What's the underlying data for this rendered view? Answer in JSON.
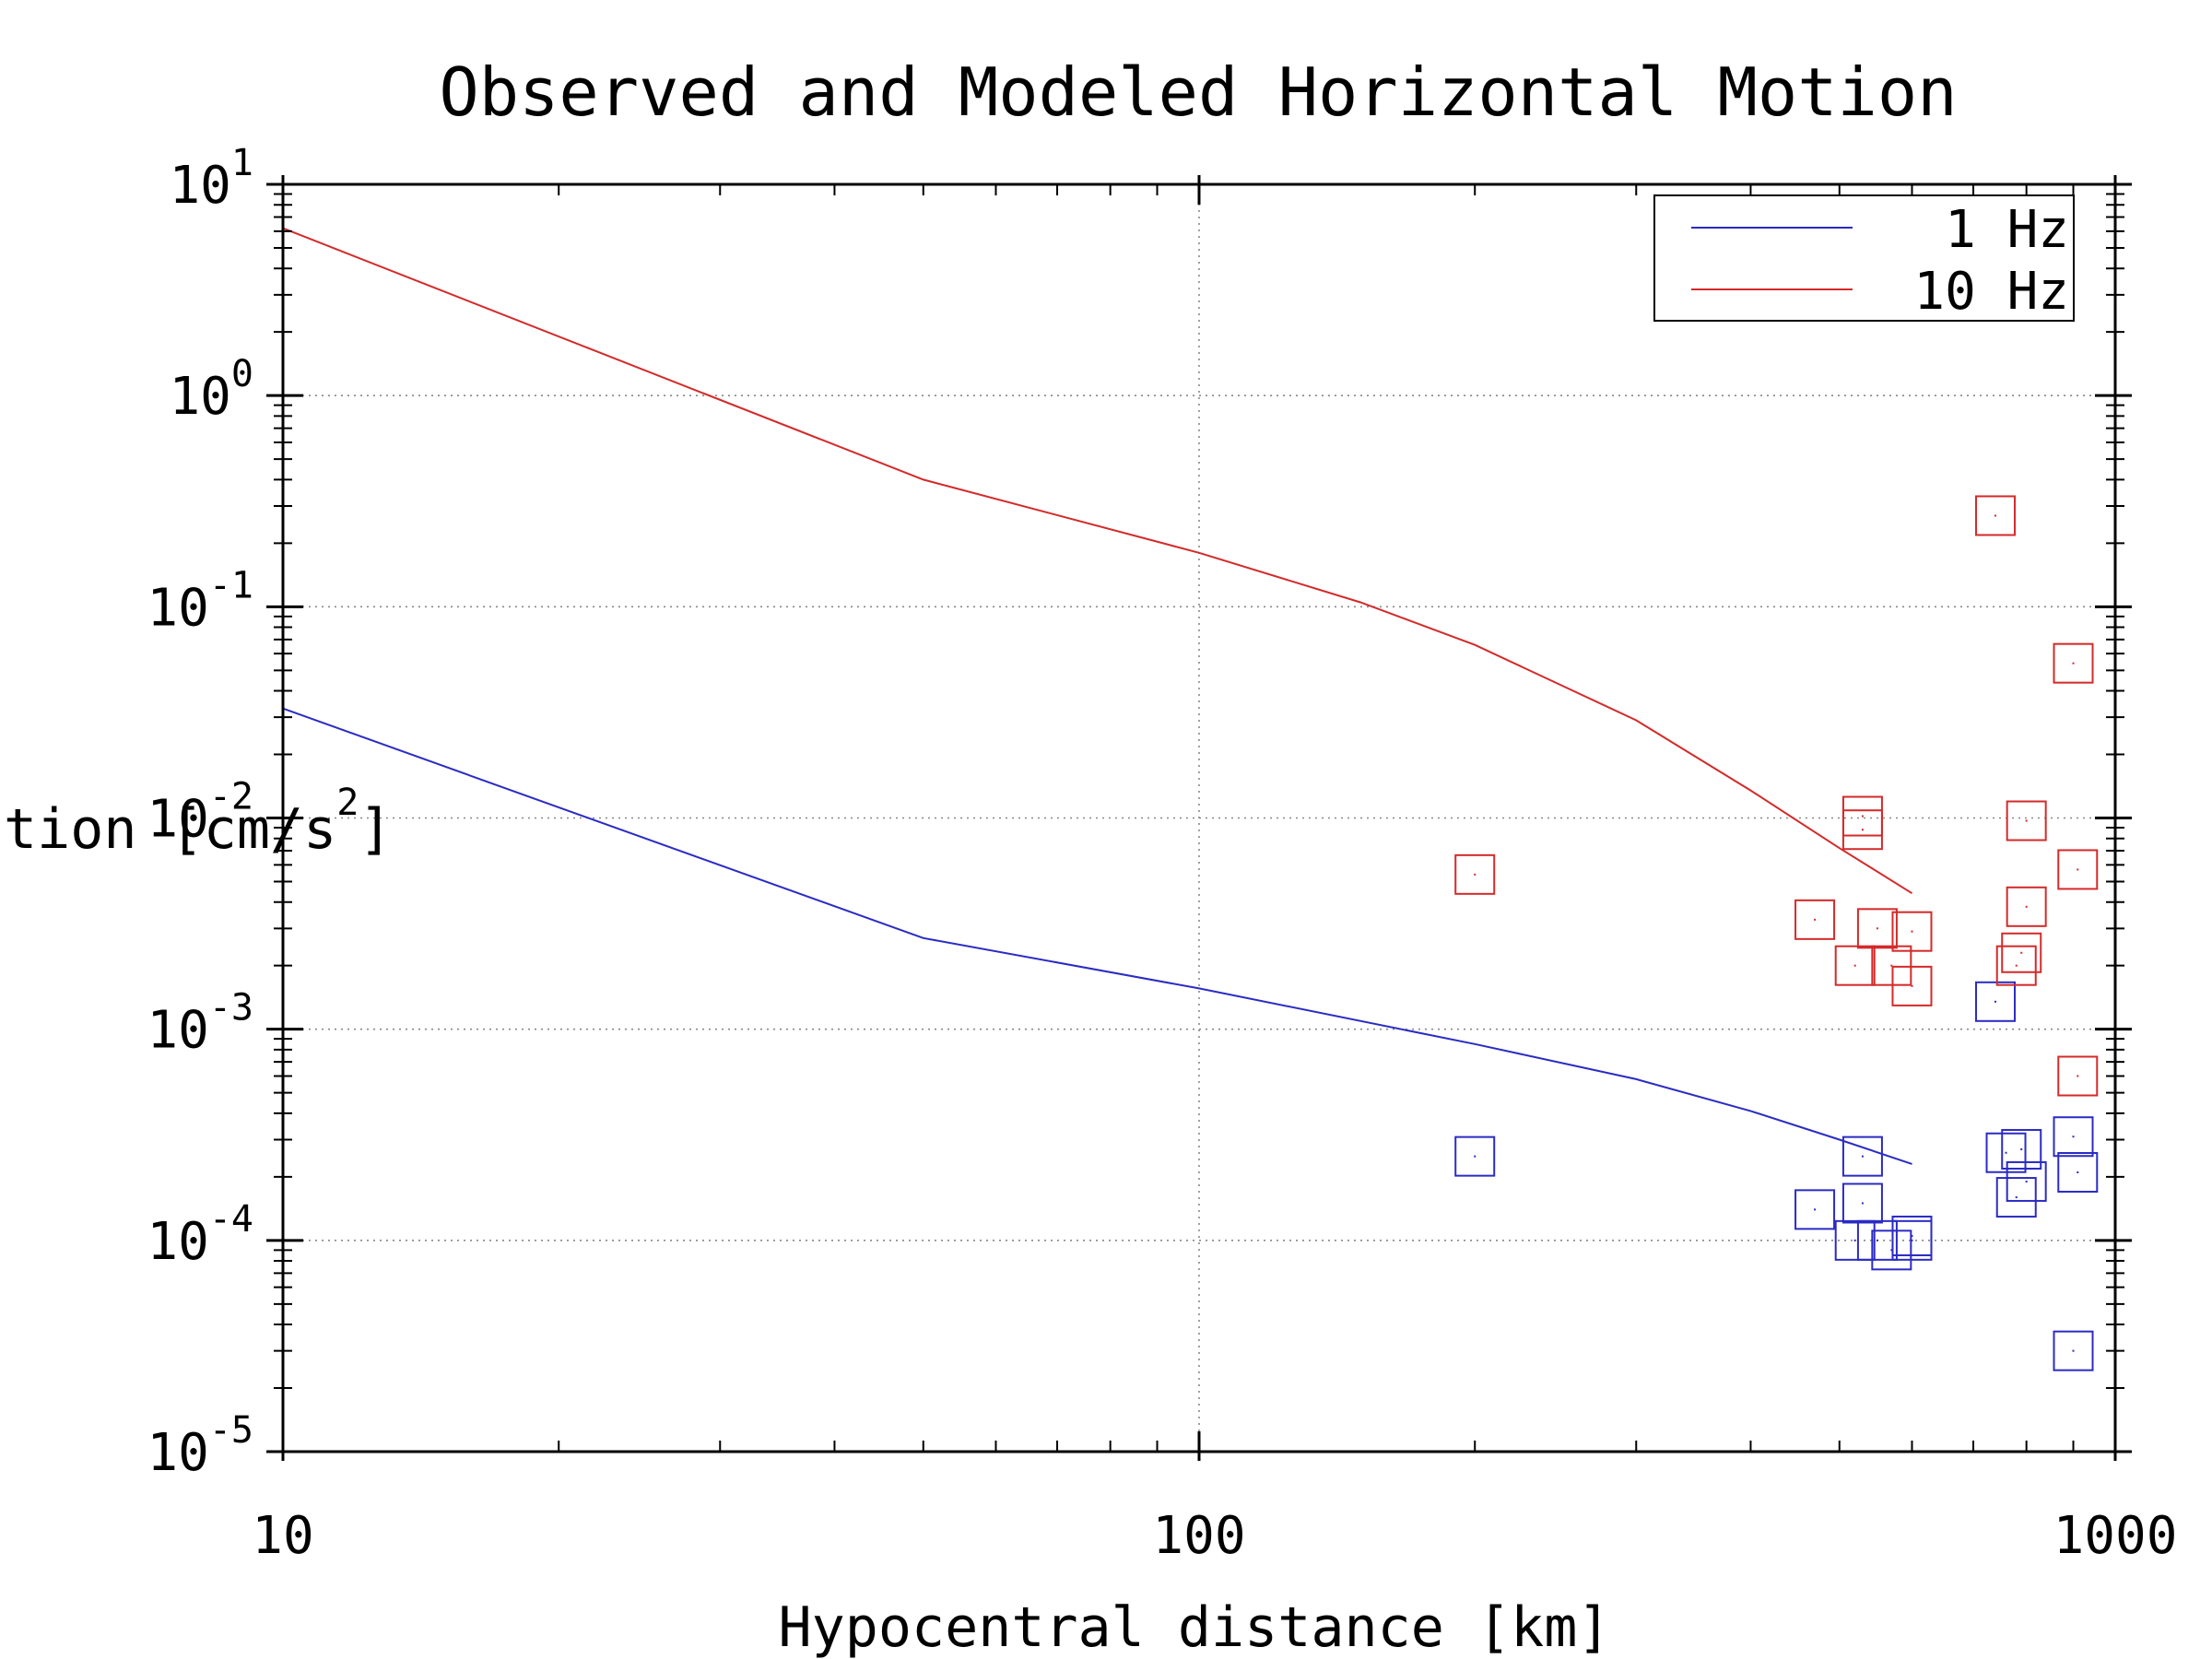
{
  "chart_data": {
    "type": "scatter",
    "title": "Observed and Modeled Horizontal Motion",
    "xlabel": "Hypocentral distance [km]",
    "ylabel": "Acceleration [cm/s",
    "ylabel_sup": "2",
    "ylabel_end": "]",
    "x_scale": "log",
    "y_scale": "log",
    "xlim": [
      10,
      1000
    ],
    "ylim": [
      1e-05,
      10
    ],
    "x_ticks": [
      {
        "value": 10,
        "label": "10"
      },
      {
        "value": 100,
        "label": "100"
      },
      {
        "value": 1000,
        "label": "1000"
      }
    ],
    "y_ticks": [
      {
        "value": 10,
        "base": "10",
        "exp": "1"
      },
      {
        "value": 1,
        "base": "10",
        "exp": "0"
      },
      {
        "value": 0.1,
        "base": "10",
        "exp": "-1"
      },
      {
        "value": 0.01,
        "base": "10",
        "exp": "-2"
      },
      {
        "value": 0.001,
        "base": "10",
        "exp": "-3"
      },
      {
        "value": 0.0001,
        "base": "10",
        "exp": "-4"
      },
      {
        "value": 1e-05,
        "base": "10",
        "exp": "-5"
      }
    ],
    "grid": true,
    "legend_position": "top-right",
    "legend": [
      {
        "label": "1 Hz",
        "color": "#2b2bc4"
      },
      {
        "label": "10 Hz",
        "color": "#d42a2a"
      }
    ],
    "series": [
      {
        "name": "1 Hz",
        "kind": "line",
        "color": "#2b2bc4",
        "x": [
          10,
          50,
          100,
          200,
          300,
          400,
          500,
          600
        ],
        "y": [
          0.033,
          0.0027,
          0.00156,
          0.00085,
          0.00058,
          0.00041,
          0.0003,
          0.00023
        ]
      },
      {
        "name": "10 Hz",
        "kind": "line",
        "color": "#d42a2a",
        "x": [
          10,
          50,
          100,
          150,
          200,
          300,
          400,
          500,
          600
        ],
        "y": [
          6.2,
          0.4,
          0.18,
          0.105,
          0.066,
          0.029,
          0.0135,
          0.0072,
          0.0044
        ]
      },
      {
        "name": "1 Hz",
        "kind": "observed",
        "color": "#2b2bc4",
        "points": [
          [
            200,
            0.00025
          ],
          [
            470,
            0.00014
          ],
          [
            520,
            0.0001
          ],
          [
            530,
            0.00025
          ],
          [
            530,
            0.00015
          ],
          [
            550,
            0.0001
          ],
          [
            570,
            9e-05
          ],
          [
            600,
            0.0001
          ],
          [
            600,
            0.000105
          ],
          [
            740,
            0.00135
          ],
          [
            760,
            0.00026
          ],
          [
            780,
            0.00016
          ],
          [
            790,
            0.00027
          ],
          [
            800,
            0.00019
          ],
          [
            900,
            0.00031
          ],
          [
            910,
            0.00021
          ],
          [
            900,
            3e-05
          ]
        ]
      },
      {
        "name": "10 Hz",
        "kind": "observed",
        "color": "#d42a2a",
        "points": [
          [
            200,
            0.0054
          ],
          [
            470,
            0.0033
          ],
          [
            520,
            0.002
          ],
          [
            530,
            0.0102
          ],
          [
            530,
            0.0088
          ],
          [
            550,
            0.003
          ],
          [
            570,
            0.002
          ],
          [
            600,
            0.0016
          ],
          [
            600,
            0.0029
          ],
          [
            740,
            0.27
          ],
          [
            780,
            0.002
          ],
          [
            790,
            0.0023
          ],
          [
            800,
            0.0097
          ],
          [
            800,
            0.0038
          ],
          [
            900,
            0.054
          ],
          [
            910,
            0.0057
          ],
          [
            910,
            0.0006
          ]
        ]
      }
    ]
  }
}
